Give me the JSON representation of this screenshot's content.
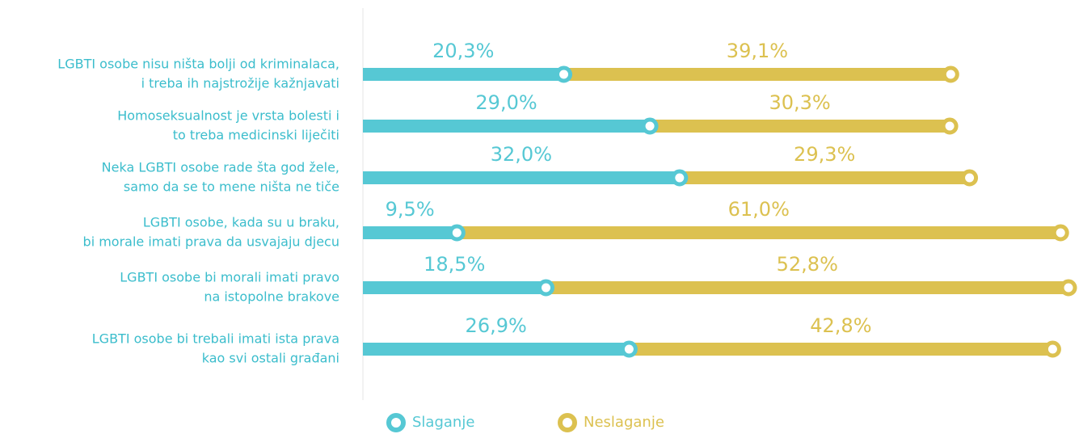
{
  "chart_data": {
    "type": "stacked-bar",
    "categories": [
      [
        "LGBTI osobe nisu ništa bolji od kriminalaca,",
        "i treba ih najstrožije kažnjavati"
      ],
      [
        "Homoseksualnost je vrsta bolesti i",
        "to treba medicinski liječiti"
      ],
      [
        "Neka LGBTI osobe rade šta god žele,",
        "samo da se to mene ništa ne tiče"
      ],
      [
        "LGBTI osobe, kada su u braku,",
        "bi morale imati prava da usvajaju djecu"
      ],
      [
        "LGBTI osobe bi morali imati pravo",
        "na istopolne brakove"
      ],
      [
        "LGBTI osobe bi trebali imati ista prava",
        "kao svi ostali građani"
      ]
    ],
    "series": [
      {
        "name": "Slaganje",
        "color": "#56c8d4",
        "values": [
          20.3,
          29.0,
          32.0,
          9.5,
          18.5,
          26.9
        ],
        "value_labels": [
          "20,3%",
          "29,0%",
          "32,0%",
          "9,5%",
          "18,5%",
          "26,9%"
        ]
      },
      {
        "name": "Neslaganje",
        "color": "#dcc150",
        "values": [
          39.1,
          30.3,
          29.3,
          61.0,
          52.8,
          42.8
        ],
        "value_labels": [
          "39,1%",
          "30,3%",
          "29,3%",
          "61,0%",
          "52,8%",
          "42,8%"
        ]
      }
    ]
  }
}
